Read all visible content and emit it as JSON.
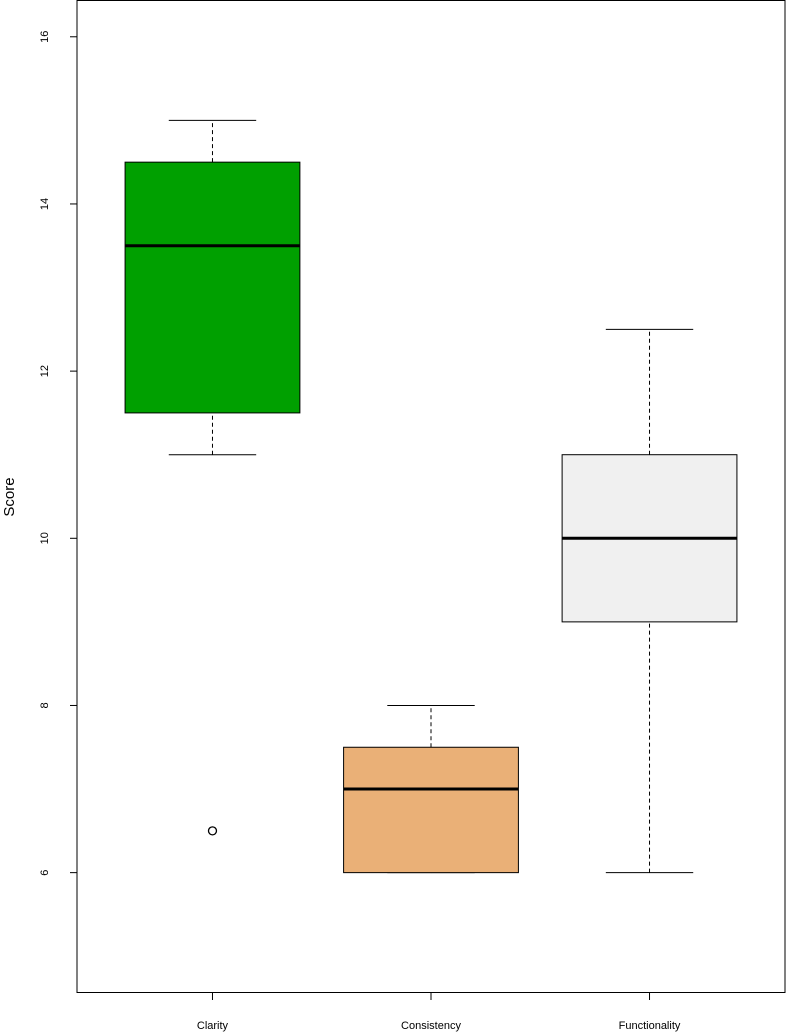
{
  "chart_data": {
    "type": "box",
    "y_label": "Score",
    "categories": [
      "Clarity",
      "Consistency",
      "Functionality"
    ],
    "boxes": [
      {
        "min": 11,
        "q1": 11.5,
        "median": 13.5,
        "q3": 14.5,
        "max": 15,
        "outliers": [
          6.5
        ],
        "color": "#00a000"
      },
      {
        "min": 6,
        "q1": 6,
        "median": 7,
        "q3": 7.5,
        "max": 8,
        "outliers": [],
        "color": "#eab077"
      },
      {
        "min": 6,
        "q1": 9,
        "median": 10,
        "q3": 11,
        "max": 12.5,
        "outliers": [],
        "color": "#f0f0f0"
      }
    ],
    "ylim": [
      4.56,
      16.44
    ],
    "yticks": [
      6,
      8,
      10,
      12,
      14,
      16
    ]
  }
}
